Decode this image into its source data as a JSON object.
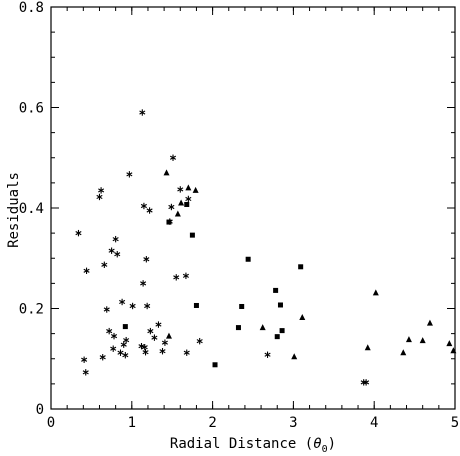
{
  "chart_data": {
    "type": "scatter",
    "title": "",
    "xlabel": "Radial Distance (",
    "xlabel_symbol": "θ",
    "xlabel_subscript": "0",
    "xlabel_close": ")",
    "ylabel": "Residuals",
    "xlim": [
      0,
      5
    ],
    "ylim": [
      0,
      0.8
    ],
    "xticks": [
      0,
      1,
      2,
      3,
      4,
      5
    ],
    "yticks": [
      0,
      0.2,
      0.4,
      0.6,
      0.8
    ],
    "xtick_labels": [
      "0",
      "1",
      "2",
      "3",
      "4",
      "5"
    ],
    "ytick_labels": [
      "0",
      "0.2",
      "0.4",
      "0.6",
      "0.8"
    ],
    "grid": false,
    "color": "#000000",
    "series": [
      {
        "marker": "asterisk",
        "x": [
          0.34,
          0.44,
          0.41,
          0.43,
          0.6,
          0.62,
          0.64,
          0.66,
          0.69,
          0.72,
          0.75,
          0.77,
          0.78,
          0.8,
          0.82,
          0.86,
          0.88,
          0.9,
          0.92,
          0.93,
          0.97,
          1.01,
          1.12,
          1.13,
          1.14,
          1.15,
          1.16,
          1.17,
          1.18,
          1.19,
          1.22,
          1.23,
          1.28,
          1.33,
          1.38,
          1.41,
          1.47,
          1.49,
          1.51,
          1.55,
          1.6,
          1.67,
          1.68,
          1.7,
          1.84,
          2.68,
          3.87,
          3.9
        ],
        "y": [
          0.35,
          0.275,
          0.098,
          0.073,
          0.422,
          0.435,
          0.103,
          0.287,
          0.198,
          0.155,
          0.315,
          0.12,
          0.145,
          0.338,
          0.308,
          0.112,
          0.213,
          0.128,
          0.107,
          0.137,
          0.467,
          0.205,
          0.125,
          0.59,
          0.25,
          0.404,
          0.123,
          0.113,
          0.298,
          0.205,
          0.395,
          0.155,
          0.142,
          0.168,
          0.115,
          0.132,
          0.373,
          0.402,
          0.5,
          0.262,
          0.437,
          0.265,
          0.112,
          0.418,
          0.135,
          0.108,
          0.053,
          0.053
        ]
      },
      {
        "marker": "square",
        "x": [
          0.92,
          1.46,
          1.68,
          1.75,
          1.8,
          2.03,
          2.32,
          2.36,
          2.44,
          2.78,
          2.8,
          2.84,
          2.86,
          3.09
        ],
        "y": [
          0.164,
          0.372,
          0.407,
          0.346,
          0.206,
          0.088,
          0.162,
          0.204,
          0.298,
          0.236,
          0.144,
          0.207,
          0.156,
          0.283
        ],
        "note": ""
      },
      {
        "marker": "triangle",
        "x": [
          1.43,
          1.46,
          1.57,
          1.61,
          1.7,
          1.79,
          2.62,
          3.01,
          3.11,
          3.92,
          4.02,
          4.36,
          4.43,
          4.6,
          4.69,
          4.93,
          4.98
        ],
        "y": [
          0.47,
          0.145,
          0.388,
          0.41,
          0.44,
          0.435,
          0.162,
          0.104,
          0.182,
          0.122,
          0.231,
          0.112,
          0.138,
          0.136,
          0.171,
          0.13,
          0.116
        ]
      }
    ]
  }
}
